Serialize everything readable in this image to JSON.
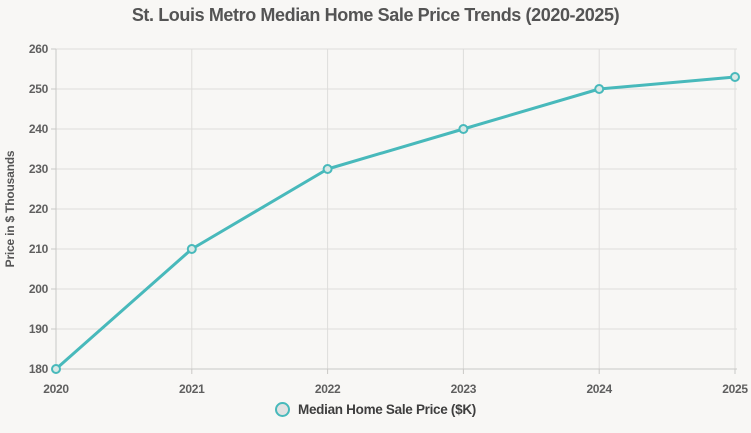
{
  "window": {
    "background_color": "#f8f7f5"
  },
  "title": "St. Louis Metro Median Home Sale Price Trends (2020-2025)",
  "chart_data": {
    "type": "line",
    "title": "St. Louis Metro Median Home Sale Price Trends (2020-2025)",
    "categories": [
      "2020",
      "2021",
      "2022",
      "2023",
      "2024",
      "2025"
    ],
    "series": [
      {
        "name": "Median Home Sale Price ($K)",
        "values": [
          180,
          210,
          230,
          240,
          250,
          253
        ]
      }
    ],
    "xlabel": "",
    "ylabel": "Price in $ Thousands",
    "ylim": [
      180,
      260
    ],
    "y_tick_interval": 10,
    "grid": true,
    "legend_position": "bottom",
    "line_color": "#48b9bb",
    "marker": "circle",
    "marker_fill": "#d9e9e6",
    "legend_marker_fill": "#e2e2e2",
    "grid_color": "#dedddb",
    "axis_color": "#c9c8c6"
  },
  "legend": {
    "items": [
      {
        "label": "Median Home Sale Price ($K)"
      }
    ]
  }
}
